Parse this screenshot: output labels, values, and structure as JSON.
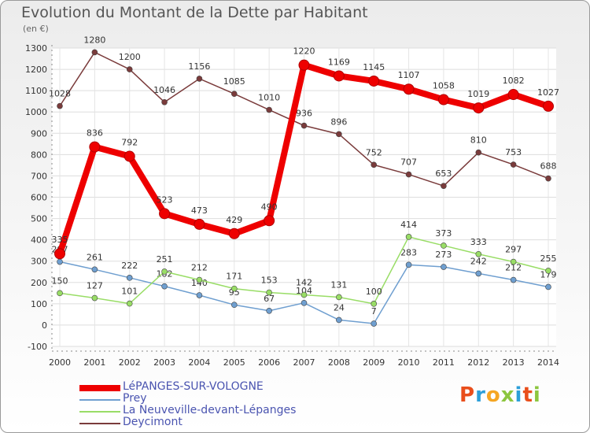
{
  "header": {
    "title": "Evolution du Montant de la Dette par Habitant",
    "unit": "(en €)"
  },
  "logo": {
    "text": "Proxiti",
    "colors": [
      "#e94e1b",
      "#2c9fd9",
      "#f5a623",
      "#8cc63f",
      "#2c9fd9",
      "#e94e1b",
      "#8cc63f"
    ]
  },
  "chart_data": {
    "type": "line",
    "x": [
      "2000",
      "2001",
      "2002",
      "2003",
      "2004",
      "2005",
      "2006",
      "2007",
      "2008",
      "2009",
      "2010",
      "2011",
      "2012",
      "2013",
      "2014"
    ],
    "ylim": [
      -100,
      1300
    ],
    "yticks": [
      -100,
      0,
      100,
      200,
      300,
      400,
      500,
      600,
      700,
      800,
      900,
      1000,
      1100,
      1200,
      1300
    ],
    "grid": true,
    "legend_position": "bottom-left",
    "series": [
      {
        "name": "LéPANGES-SUR-VOLOGNE",
        "color": "#ee0000",
        "emphasis": true,
        "values": [
          335,
          836,
          792,
          523,
          473,
          429,
          490,
          1220,
          1169,
          1145,
          1107,
          1058,
          1019,
          1082,
          1027
        ]
      },
      {
        "name": "Prey",
        "color": "#6f9fd0",
        "values": [
          297,
          261,
          222,
          182,
          140,
          95,
          67,
          104,
          24,
          7,
          283,
          273,
          242,
          212,
          179
        ]
      },
      {
        "name": "La Neuveville-devant-Lépanges",
        "color": "#99dd66",
        "values": [
          150,
          127,
          101,
          251,
          212,
          171,
          153,
          142,
          131,
          100,
          414,
          373,
          333,
          297,
          255
        ]
      },
      {
        "name": "Deycimont",
        "color": "#7a3b3b",
        "values": [
          1028,
          1280,
          1200,
          1046,
          1156,
          1085,
          1010,
          936,
          896,
          752,
          707,
          653,
          810,
          753,
          688
        ]
      }
    ]
  }
}
